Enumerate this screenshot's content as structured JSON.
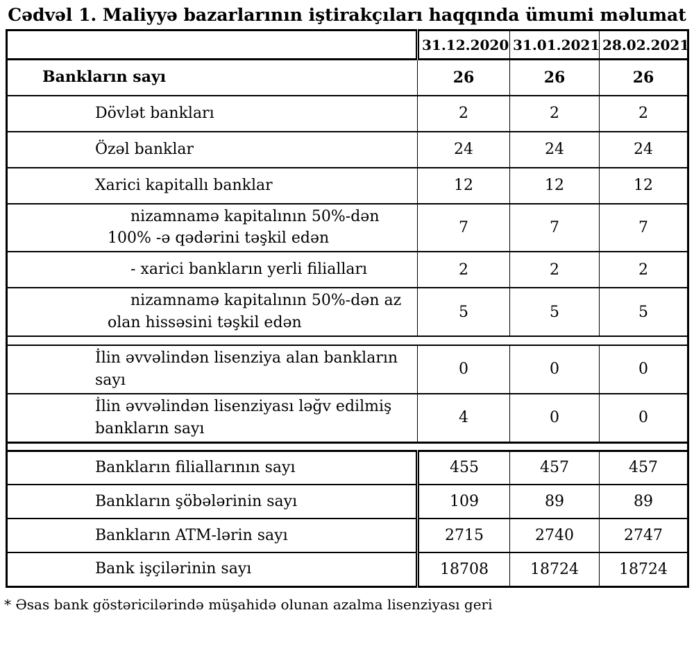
{
  "title": "Cədvəl 1. Maliyyə bazarlarının iştirakçıları haqqında ümumi məlumat",
  "table": {
    "column_headers": [
      "31.12.2020",
      "31.01.2021",
      "28.02.2021"
    ],
    "sections": [
      {
        "name": "banks",
        "rows": [
          {
            "label": "Bankların sayı",
            "bold": true,
            "indent": 1,
            "values": [
              "26",
              "26",
              "26"
            ]
          },
          {
            "label": "Dövlət bankları",
            "indent": 2,
            "values": [
              "2",
              "2",
              "2"
            ]
          },
          {
            "label": "Özəl banklar",
            "indent": 2,
            "values": [
              "24",
              "24",
              "24"
            ]
          },
          {
            "label": "Xarici kapitallı banklar",
            "indent": 2,
            "values": [
              "12",
              "12",
              "12"
            ]
          },
          {
            "lines": [
              "nizamnamə kapitalının 50%-dən",
              "100% -ə qədərini təşkil edən"
            ],
            "indent": 3,
            "values": [
              "7",
              "7",
              "7"
            ]
          },
          {
            "label": "- xarici bankların yerli filialları",
            "indent": 3,
            "values": [
              "2",
              "2",
              "2"
            ]
          },
          {
            "lines": [
              "nizamnamə kapitalının 50%-dən az",
              "olan hissəsini təşkil edən"
            ],
            "indent": 3,
            "values": [
              "5",
              "5",
              "5"
            ]
          },
          {
            "spacer": true
          },
          {
            "lines": [
              "İlin əvvəlindən lisenziya alan bankların",
              "sayı"
            ],
            "indent": 2,
            "values": [
              "0",
              "0",
              "0"
            ]
          },
          {
            "lines": [
              "İlin əvvəlindən lisenziyası ləğv edilmiş",
              "bankların sayı"
            ],
            "indent": 2,
            "values": [
              "4",
              "0",
              "0"
            ]
          }
        ]
      },
      {
        "name": "infrastructure",
        "rows": [
          {
            "label": "Bankların filiallarının sayı",
            "indent": 2,
            "values": [
              "455",
              "457",
              "457"
            ]
          },
          {
            "label": "Bankların şöbələrinin sayı",
            "indent": 2,
            "values": [
              "109",
              "89",
              "89"
            ]
          },
          {
            "label": "Bankların ATM-lərin sayı",
            "indent": 2,
            "values": [
              "2715",
              "2740",
              "2747"
            ]
          },
          {
            "label": "Bank işçilərinin sayı",
            "indent": 2,
            "values": [
              "18708",
              "18724",
              "18724"
            ]
          }
        ]
      }
    ]
  },
  "footnote": "* Əsas bank göstəricilərində müşahidə olunan azalma lisenziyası geri"
}
